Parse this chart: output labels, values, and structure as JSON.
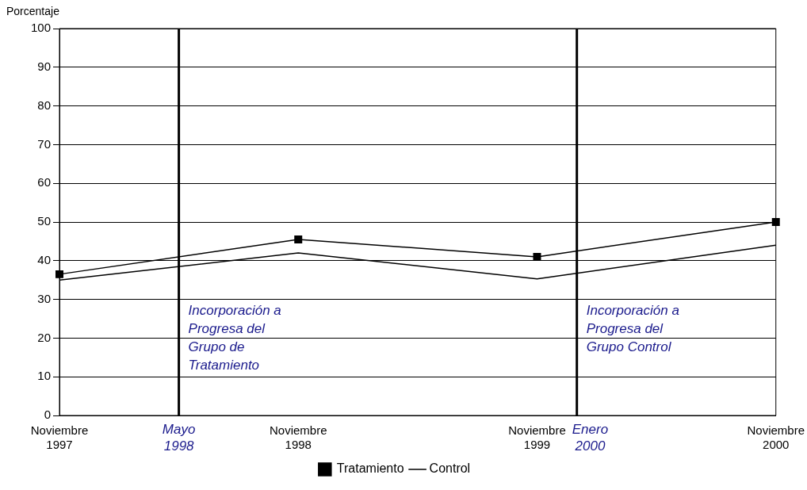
{
  "chart_data": {
    "type": "line",
    "ylabel": "Porcentaje",
    "x": [
      "1997-11",
      "1998-11",
      "1999-11",
      "2000-11"
    ],
    "xlim": [
      "1997-11",
      "2000-11"
    ],
    "xticks": [
      {
        "value": "1997-11",
        "label": "Noviembre 1997"
      },
      {
        "value": "1998-11",
        "label": "Noviembre 1998"
      },
      {
        "value": "1999-11",
        "label": "Noviembre 1999"
      },
      {
        "value": "2000-11",
        "label": "Noviembre 2000"
      }
    ],
    "ylim": [
      0,
      100
    ],
    "yticks": [
      0,
      10,
      20,
      30,
      40,
      50,
      60,
      70,
      80,
      90,
      100
    ],
    "series": [
      {
        "name": "Tratamiento",
        "color": "#000000",
        "values": [
          36.5,
          45.5,
          41,
          50
        ],
        "marker": "square"
      },
      {
        "name": "Control",
        "color": "#000000",
        "values": [
          35,
          42,
          35.3,
          44
        ],
        "marker": "none"
      }
    ],
    "ref_lines": [
      {
        "axis": "x",
        "value": "1998-05",
        "label": "Mayo 1998",
        "color": "#000000"
      },
      {
        "axis": "x",
        "value": "2000-01",
        "label": "Enero 2000",
        "color": "#000000"
      }
    ],
    "annotations": [
      {
        "text": "Incorporación a Progresa del Grupo de Tratamiento",
        "x": "1998-05",
        "y": 26
      },
      {
        "text": "Incorporación a Progresa del Grupo Control",
        "x": "2000-01",
        "y": 26
      }
    ],
    "grid": "y",
    "legend": "bottom",
    "line_style": "solid"
  }
}
